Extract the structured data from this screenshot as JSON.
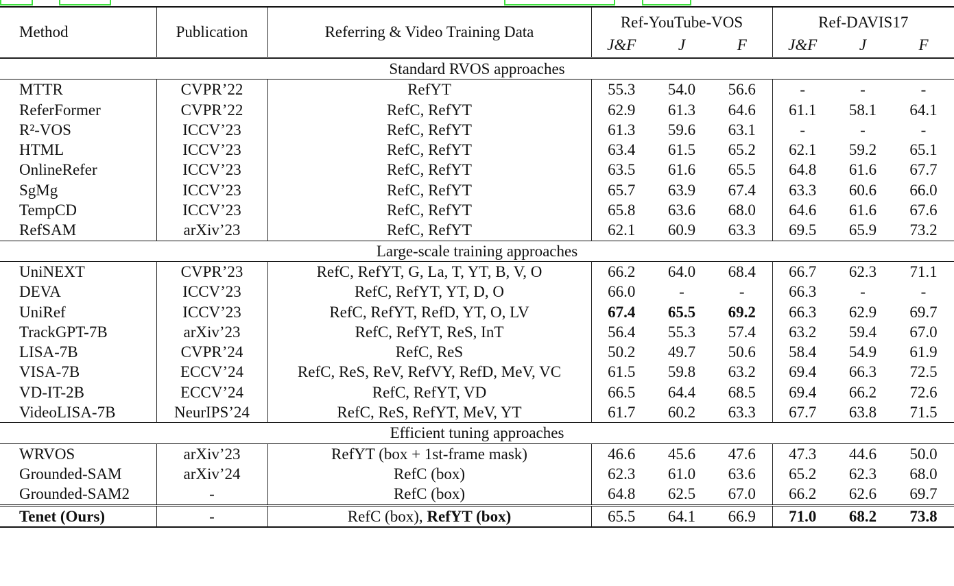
{
  "header": {
    "method": "Method",
    "publication": "Publication",
    "training_data": "Referring & Video Training Data",
    "dataset1": "Ref-YouTube-VOS",
    "dataset2": "Ref-DAVIS17",
    "metrics": [
      "J&F",
      "J",
      "F",
      "J&F",
      "J",
      "F"
    ]
  },
  "sections": [
    {
      "title": "Standard RVOS approaches",
      "rows": [
        {
          "method": "MTTR",
          "pub": "CVPR’22",
          "data": [
            {
              "t": "RefYT"
            }
          ],
          "vals": [
            "55.3",
            "54.0",
            "56.6",
            "-",
            "-",
            "-"
          ]
        },
        {
          "method": "ReferFormer",
          "pub": "CVPR’22",
          "data": [
            {
              "t": "RefC, RefYT"
            }
          ],
          "vals": [
            "62.9",
            "61.3",
            "64.6",
            "61.1",
            "58.1",
            "64.1"
          ]
        },
        {
          "method": "R²-VOS",
          "pub": "ICCV’23",
          "data": [
            {
              "t": "RefC, RefYT"
            }
          ],
          "vals": [
            "61.3",
            "59.6",
            "63.1",
            "-",
            "-",
            "-"
          ]
        },
        {
          "method": "HTML",
          "pub": "ICCV’23",
          "data": [
            {
              "t": "RefC, RefYT"
            }
          ],
          "vals": [
            "63.4",
            "61.5",
            "65.2",
            "62.1",
            "59.2",
            "65.1"
          ]
        },
        {
          "method": "OnlineRefer",
          "pub": "ICCV’23",
          "data": [
            {
              "t": "RefC, RefYT"
            }
          ],
          "vals": [
            "63.5",
            "61.6",
            "65.5",
            "64.8",
            "61.6",
            "67.7"
          ]
        },
        {
          "method": "SgMg",
          "pub": "ICCV’23",
          "data": [
            {
              "t": "RefC, RefYT"
            }
          ],
          "vals": [
            "65.7",
            "63.9",
            "67.4",
            "63.3",
            "60.6",
            "66.0"
          ]
        },
        {
          "method": "TempCD",
          "pub": "ICCV’23",
          "data": [
            {
              "t": "RefC, RefYT"
            }
          ],
          "vals": [
            "65.8",
            "63.6",
            "68.0",
            "64.6",
            "61.6",
            "67.6"
          ]
        },
        {
          "method": "RefSAM",
          "pub": "arXiv’23",
          "data": [
            {
              "t": "RefC, RefYT"
            }
          ],
          "vals": [
            "62.1",
            "60.9",
            "63.3",
            "69.5",
            "65.9",
            "73.2"
          ]
        }
      ]
    },
    {
      "title": "Large-scale training approaches",
      "rows": [
        {
          "method": "UniNEXT",
          "pub": "CVPR’23",
          "data": [
            {
              "t": "RefC, RefYT, G, La, T, YT, B, V, O"
            }
          ],
          "vals": [
            "66.2",
            "64.0",
            "68.4",
            "66.7",
            "62.3",
            "71.1"
          ]
        },
        {
          "method": "DEVA",
          "pub": "ICCV’23",
          "data": [
            {
              "t": "RefC, RefYT, YT, D, O"
            }
          ],
          "vals": [
            "66.0",
            "-",
            "-",
            "66.3",
            "-",
            "-"
          ]
        },
        {
          "method": "UniRef",
          "pub": "ICCV’23",
          "data": [
            {
              "t": "RefC, RefYT, RefD, YT, O, LV"
            }
          ],
          "vals": [
            "67.4",
            "65.5",
            "69.2",
            "66.3",
            "62.9",
            "69.7"
          ],
          "bold": [
            0,
            1,
            2
          ]
        },
        {
          "method": "TrackGPT-7B",
          "pub": "arXiv’23",
          "data": [
            {
              "t": "RefC, RefYT, ReS, InT"
            }
          ],
          "vals": [
            "56.4",
            "55.3",
            "57.4",
            "63.2",
            "59.4",
            "67.0"
          ]
        },
        {
          "method": "LISA-7B",
          "pub": "CVPR’24",
          "data": [
            {
              "t": "RefC, ReS"
            }
          ],
          "vals": [
            "50.2",
            "49.7",
            "50.6",
            "58.4",
            "54.9",
            "61.9"
          ]
        },
        {
          "method": "VISA-7B",
          "pub": "ECCV’24",
          "data": [
            {
              "t": "RefC, ReS, ReV, RefVY, RefD, MeV, VC"
            }
          ],
          "vals": [
            "61.5",
            "59.8",
            "63.2",
            "69.4",
            "66.3",
            "72.5"
          ]
        },
        {
          "method": "VD-IT-2B",
          "pub": "ECCV’24",
          "data": [
            {
              "t": "RefC, RefYT, VD"
            }
          ],
          "vals": [
            "66.5",
            "64.4",
            "68.5",
            "69.4",
            "66.2",
            "72.6"
          ]
        },
        {
          "method": "VideoLISA-7B",
          "pub": "NeurIPS’24",
          "data": [
            {
              "t": "RefC, ReS, RefYT, MeV, YT"
            }
          ],
          "vals": [
            "61.7",
            "60.2",
            "63.3",
            "67.7",
            "63.8",
            "71.5"
          ]
        }
      ]
    },
    {
      "title": "Efficient tuning approaches",
      "rows": [
        {
          "method": "WRVOS",
          "pub": "arXiv’23",
          "data": [
            {
              "t": "RefYT (box + 1st-frame mask)"
            }
          ],
          "vals": [
            "46.6",
            "45.6",
            "47.6",
            "47.3",
            "44.6",
            "50.0"
          ]
        },
        {
          "method": "Grounded-SAM",
          "pub": "arXiv’24",
          "data": [
            {
              "t": "RefC (box)"
            }
          ],
          "vals": [
            "62.3",
            "61.0",
            "63.6",
            "65.2",
            "62.3",
            "68.0"
          ]
        },
        {
          "method": "Grounded-SAM2",
          "pub": "-",
          "data": [
            {
              "t": "RefC (box)"
            }
          ],
          "vals": [
            "64.8",
            "62.5",
            "67.0",
            "66.2",
            "62.6",
            "69.7"
          ]
        }
      ]
    }
  ],
  "ours": {
    "method": "Tenet (Ours)",
    "pub": "-",
    "data": [
      {
        "t": "RefC (box), "
      },
      {
        "t": "RefYT (box)",
        "b": true
      }
    ],
    "vals": [
      "65.5",
      "64.1",
      "66.9",
      "71.0",
      "68.2",
      "73.8"
    ],
    "bold": [
      3,
      4,
      5
    ]
  }
}
